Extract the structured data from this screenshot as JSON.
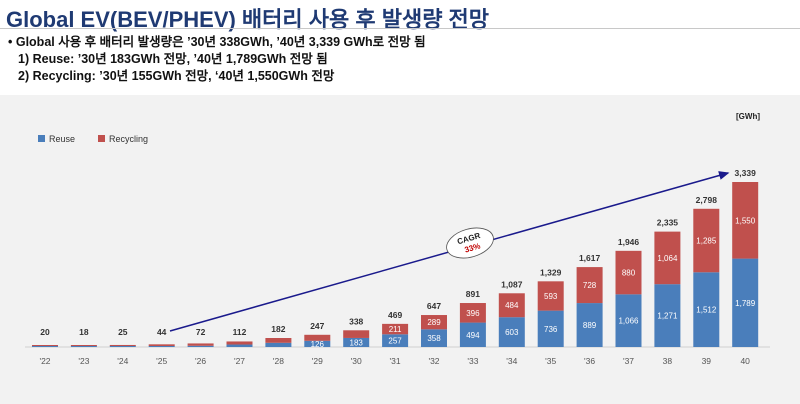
{
  "header": {
    "title": "Global EV(BEV/PHEV) 배터리 사용 후 발생량 전망"
  },
  "bullets": [
    "• Global 사용 후 배터리 발생량은 ’30년 338GWh, ’40년 3,339 GWh로 전망 됨",
    "1) Reuse: ’30년 183GWh 전망, ’40년 1,789GWh 전망 됨",
    "2) Recycling: ’30년 155GWh 전망, ‘40년 1,550GWh 전망"
  ],
  "chart_data": {
    "type": "bar",
    "stacked": true,
    "unit": "[GWh]",
    "categories": [
      "'22",
      "'23",
      "'24",
      "'25",
      "'26",
      "'27",
      "'28",
      "'29",
      "'30",
      "'31",
      "'32",
      "'33",
      "'34",
      "'35",
      "'36",
      "'37",
      "38",
      "39",
      "40"
    ],
    "totals": [
      20,
      18,
      25,
      44,
      72,
      112,
      182,
      247,
      338,
      469,
      647,
      891,
      1087,
      1329,
      1617,
      1946,
      2335,
      2798,
      3339
    ],
    "series": [
      {
        "name": "Reuse",
        "color": "#4a7ebb",
        "values": [
          2,
          2,
          4,
          10,
          25,
          50,
          85,
          126,
          183,
          257,
          358,
          494,
          603,
          736,
          889,
          1066,
          1271,
          1512,
          1789
        ],
        "labeled_from": 7
      },
      {
        "name": "Recycling",
        "color": "#c0504d",
        "values": [
          18,
          16,
          21,
          34,
          47,
          62,
          97,
          121,
          155,
          211,
          289,
          396,
          484,
          593,
          728,
          880,
          1064,
          1285,
          1550
        ],
        "labeled_from": 9
      }
    ],
    "annotation": {
      "label": "CAGR",
      "value": "33%"
    },
    "legend": "top-left",
    "ylim": [
      0,
      3339
    ]
  }
}
